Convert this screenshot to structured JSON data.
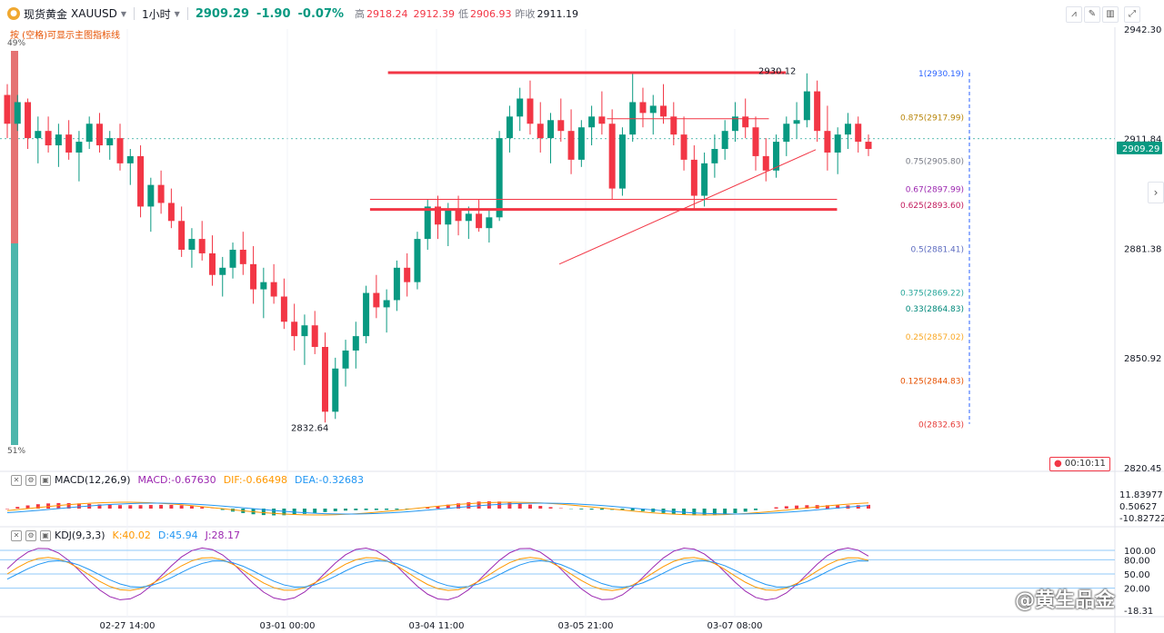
{
  "header": {
    "symbol": "现货黄金",
    "ticker": "XAUUSD",
    "timeframe": "1小时",
    "price": "2909.29",
    "change": "-1.90",
    "change_pct": "-0.07%",
    "high_label": "高",
    "high": "2918.24",
    "low_open_label": "",
    "open_value": "2912.39",
    "low_label": "低",
    "low": "2906.93",
    "prev_label": "昨收",
    "prev_close": "2911.19"
  },
  "hint": "按 (空格)可显示主图指标线",
  "ratio_top": "49%",
  "ratio_bottom": "51%",
  "countdown": "00:10:11",
  "current_price_tag": "2909.29",
  "colors": {
    "up": "#089981",
    "down": "#f23645",
    "bg": "#ffffff",
    "accent": "#f23645"
  },
  "macd": {
    "title": "MACD(12,26,9)",
    "macd": "MACD:-0.67630",
    "dif": "DIF:-0.66498",
    "dea": "DEA:-0.32683",
    "axis": [
      "11.83977",
      "0.50627",
      "-10.82722"
    ]
  },
  "kdj": {
    "title": "KDJ(9,3,3)",
    "k": "K:40.02",
    "d": "D:45.94",
    "j": "J:28.17",
    "axis": [
      "100.00",
      "80.00",
      "50.00",
      "20.00",
      "-18.31"
    ]
  },
  "watermark": "@黄生品金",
  "icons": [
    "gold-coin-icon",
    "caret-down-icon",
    "settings-icon",
    "eye-icon",
    "close-icon",
    "chevron-right-icon",
    "chart-type-icon",
    "pen-icon",
    "layout-icon",
    "expand-icon"
  ],
  "chart_data": {
    "type": "candlestick",
    "title": "现货黄金 XAUUSD 1小时",
    "y_axis_labels": [
      "2942.30",
      "2911.84",
      "2881.38",
      "2850.92",
      "2820.45"
    ],
    "ylim": [
      2820.45,
      2942.3
    ],
    "x_axis_labels": [
      "02-27 14:00",
      "03-01 00:00",
      "03-04 11:00",
      "03-05 21:00",
      "03-07 08:00"
    ],
    "last_price": 2909.29,
    "reference_price": 2911.84,
    "annotations": {
      "low_label": "2832.64",
      "high_label": "2930.12"
    },
    "fibonacci": [
      {
        "level": "1",
        "price": "2930.19"
      },
      {
        "level": "0.875",
        "price": "2917.99"
      },
      {
        "level": "0.75",
        "price": "2905.80"
      },
      {
        "level": "0.67",
        "price": "2897.99"
      },
      {
        "level": "0.625",
        "price": "2893.60"
      },
      {
        "level": "0.5",
        "price": "2881.41"
      },
      {
        "level": "0.375",
        "price": "2869.22"
      },
      {
        "level": "0.33",
        "price": "2864.83"
      },
      {
        "level": "0.25",
        "price": "2857.02"
      },
      {
        "level": "0.125",
        "price": "2844.83"
      },
      {
        "level": "0",
        "price": "2832.63"
      }
    ],
    "fib_colors": [
      "#2962ff",
      "#b8860b",
      "#787b86",
      "#9c27b0",
      "#c2185b",
      "#5c6bc0",
      "#26a69a",
      "#00897b",
      "#f9a825",
      "#e65100",
      "#e53935"
    ],
    "drawn_lines": [
      {
        "from": [
          "03-03 08:00",
          2930.2
        ],
        "to": [
          "03-07 20:00",
          2930.2
        ],
        "style": "horizontal-thick"
      },
      {
        "from": [
          "03-02 22:00",
          2892.2
        ],
        "to": [
          "03-08 08:00",
          2892.2
        ],
        "style": "horizontal-thick"
      },
      {
        "from": [
          "03-02 22:00",
          2895.0
        ],
        "to": [
          "03-08 08:00",
          2895.0
        ],
        "style": "horizontal-thin"
      },
      {
        "from": [
          "03-06 02:00",
          2917.4
        ],
        "to": [
          "03-07 16:00",
          2917.4
        ],
        "style": "horizontal-thin"
      },
      {
        "from": [
          "03-05 15:00",
          2877.0
        ],
        "to": [
          "03-08 03:00",
          2908.8
        ],
        "style": "trendline"
      }
    ],
    "candles_ohlc": [
      [
        2924,
        2927,
        2912,
        2916
      ],
      [
        2916,
        2924,
        2914,
        2922
      ],
      [
        2922,
        2923,
        2909,
        2912
      ],
      [
        2912,
        2918,
        2905,
        2914
      ],
      [
        2914,
        2918,
        2908,
        2910
      ],
      [
        2910,
        2916,
        2904,
        2913
      ],
      [
        2913,
        2917,
        2906,
        2908
      ],
      [
        2908,
        2914,
        2900,
        2911
      ],
      [
        2911,
        2918,
        2909,
        2916
      ],
      [
        2916,
        2919,
        2908,
        2910
      ],
      [
        2910,
        2914,
        2906,
        2912
      ],
      [
        2912,
        2916,
        2903,
        2905
      ],
      [
        2905,
        2909,
        2899,
        2907
      ],
      [
        2907,
        2910,
        2890,
        2893
      ],
      [
        2893,
        2901,
        2886,
        2899
      ],
      [
        2899,
        2903,
        2891,
        2894
      ],
      [
        2894,
        2898,
        2887,
        2889
      ],
      [
        2889,
        2893,
        2879,
        2881
      ],
      [
        2881,
        2887,
        2876,
        2884
      ],
      [
        2884,
        2889,
        2878,
        2880
      ],
      [
        2880,
        2885,
        2871,
        2874
      ],
      [
        2874,
        2879,
        2868,
        2876
      ],
      [
        2876,
        2883,
        2873,
        2881
      ],
      [
        2881,
        2886,
        2874,
        2877
      ],
      [
        2877,
        2882,
        2866,
        2870
      ],
      [
        2870,
        2876,
        2862,
        2872
      ],
      [
        2872,
        2877,
        2866,
        2868
      ],
      [
        2868,
        2873,
        2859,
        2861
      ],
      [
        2861,
        2866,
        2853,
        2857
      ],
      [
        2857,
        2863,
        2849,
        2860
      ],
      [
        2860,
        2864,
        2852,
        2854
      ],
      [
        2854,
        2858,
        2833,
        2836
      ],
      [
        2836,
        2851,
        2834,
        2848
      ],
      [
        2848,
        2856,
        2843,
        2853
      ],
      [
        2853,
        2861,
        2848,
        2857
      ],
      [
        2857,
        2871,
        2855,
        2869
      ],
      [
        2869,
        2874,
        2862,
        2865
      ],
      [
        2865,
        2870,
        2858,
        2867
      ],
      [
        2867,
        2878,
        2864,
        2876
      ],
      [
        2876,
        2880,
        2868,
        2872
      ],
      [
        2872,
        2886,
        2870,
        2884
      ],
      [
        2884,
        2895,
        2881,
        2893
      ],
      [
        2893,
        2896,
        2884,
        2888
      ],
      [
        2888,
        2894,
        2882,
        2892
      ],
      [
        2892,
        2896,
        2885,
        2889
      ],
      [
        2889,
        2893,
        2884,
        2891
      ],
      [
        2891,
        2895,
        2886,
        2887
      ],
      [
        2887,
        2892,
        2883,
        2890
      ],
      [
        2890,
        2914,
        2889,
        2912
      ],
      [
        2912,
        2921,
        2908,
        2918
      ],
      [
        2918,
        2926,
        2914,
        2923
      ],
      [
        2923,
        2928,
        2913,
        2916
      ],
      [
        2916,
        2922,
        2908,
        2912
      ],
      [
        2912,
        2919,
        2905,
        2917
      ],
      [
        2917,
        2923,
        2911,
        2914
      ],
      [
        2914,
        2920,
        2902,
        2906
      ],
      [
        2906,
        2917,
        2904,
        2915
      ],
      [
        2915,
        2921,
        2910,
        2918
      ],
      [
        2918,
        2925,
        2913,
        2916
      ],
      [
        2916,
        2920,
        2895,
        2898
      ],
      [
        2898,
        2915,
        2896,
        2913
      ],
      [
        2913,
        2930,
        2911,
        2922
      ],
      [
        2922,
        2926,
        2915,
        2919
      ],
      [
        2919,
        2924,
        2913,
        2921
      ],
      [
        2921,
        2927,
        2916,
        2918
      ],
      [
        2918,
        2922,
        2910,
        2913
      ],
      [
        2913,
        2918,
        2903,
        2906
      ],
      [
        2906,
        2910,
        2892,
        2896
      ],
      [
        2896,
        2908,
        2893,
        2905
      ],
      [
        2905,
        2913,
        2901,
        2909
      ],
      [
        2909,
        2917,
        2906,
        2914
      ],
      [
        2914,
        2922,
        2911,
        2918
      ],
      [
        2918,
        2923,
        2912,
        2915
      ],
      [
        2915,
        2918,
        2903,
        2907
      ],
      [
        2907,
        2912,
        2900,
        2903
      ],
      [
        2903,
        2913,
        2901,
        2911
      ],
      [
        2911,
        2918,
        2907,
        2916
      ],
      [
        2916,
        2922,
        2912,
        2917
      ],
      [
        2917,
        2930,
        2915,
        2925
      ],
      [
        2925,
        2928,
        2911,
        2914
      ],
      [
        2914,
        2921,
        2903,
        2908
      ],
      [
        2908,
        2915,
        2902,
        2913
      ],
      [
        2913,
        2919,
        2909,
        2916
      ],
      [
        2916,
        2918,
        2908,
        2911
      ],
      [
        2911,
        2913,
        2907,
        2909
      ]
    ]
  }
}
